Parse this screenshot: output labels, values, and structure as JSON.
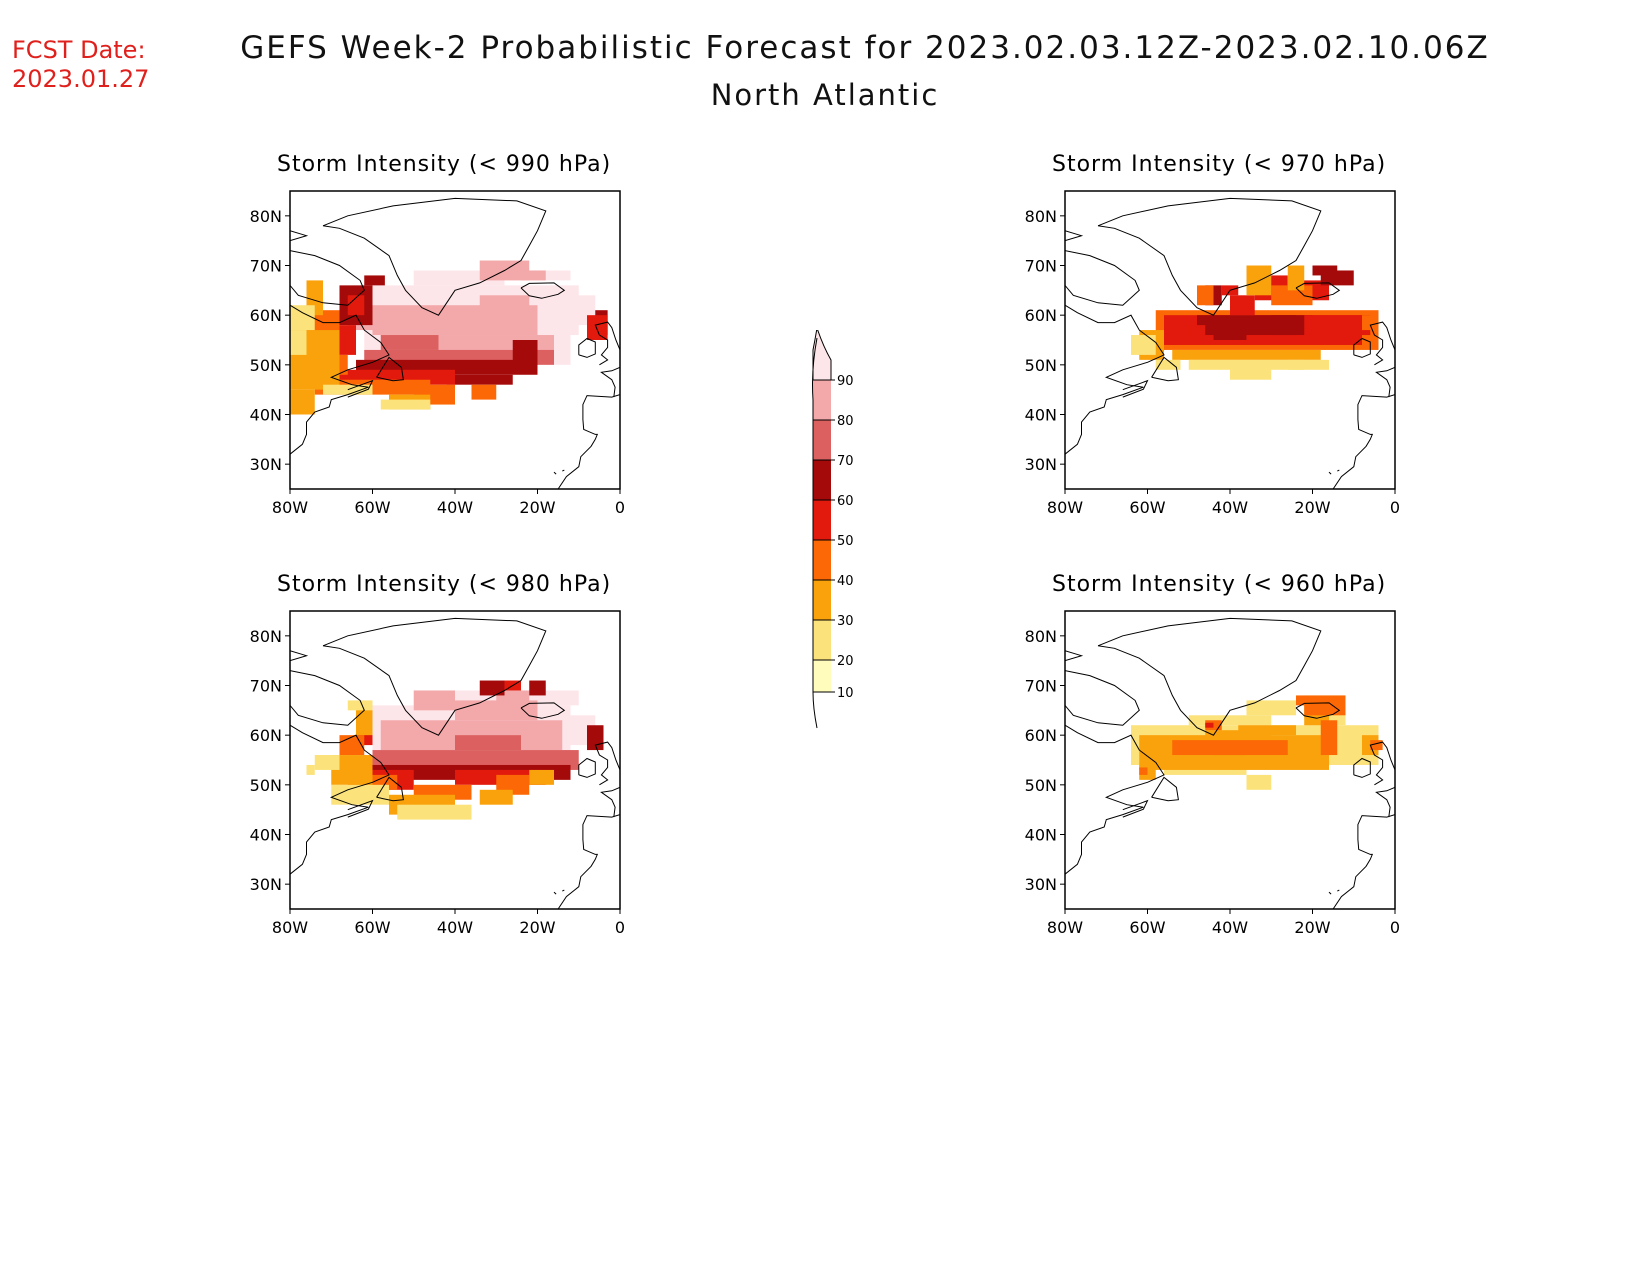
{
  "fcst": {
    "label": "FCST Date:",
    "date": "2023.01.27"
  },
  "title": "GEFS Week-2 Probabilistic Forecast for 2023.02.03.12Z-2023.02.10.06Z",
  "subtitle": "North Atlantic",
  "axes": {
    "lat_labels": [
      "80N",
      "70N",
      "60N",
      "50N",
      "40N",
      "30N"
    ],
    "lon_labels": [
      "80W",
      "60W",
      "40W",
      "20W",
      "0"
    ]
  },
  "colorbar": {
    "levels": [
      "10",
      "20",
      "30",
      "40",
      "50",
      "60",
      "70",
      "80",
      "90"
    ],
    "colors": [
      "#fffcbc",
      "#fbe27a",
      "#f9a20c",
      "#fb6805",
      "#e21a0d",
      "#a50a0a",
      "#dc6060",
      "#f3a8aa",
      "#fde6ea"
    ]
  },
  "panels": [
    {
      "id": "p990",
      "title": "Storm Intensity (< 990 hPa)"
    },
    {
      "id": "p970",
      "title": "Storm Intensity (< 970 hPa)"
    },
    {
      "id": "p980",
      "title": "Storm Intensity (< 980 hPa)"
    },
    {
      "id": "p960",
      "title": "Storm Intensity (< 960 hPa)"
    }
  ]
}
